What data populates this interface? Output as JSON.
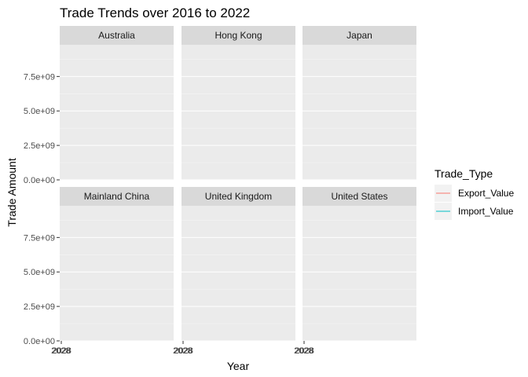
{
  "chart_data": {
    "type": "line",
    "title": "Trade Trends over 2016 to 2022",
    "xlabel": "Year",
    "ylabel": "Trade Amount",
    "facets": [
      "Australia",
      "Hong Kong",
      "Japan",
      "Mainland China",
      "United Kingdom",
      "United States"
    ],
    "y_ticks": [
      "0.0e+00",
      "2.5e+09",
      "5.0e+09",
      "7.5e+09"
    ],
    "y_tick_values": [
      0,
      2500000000,
      5000000000,
      7500000000
    ],
    "ylim": [
      0,
      9800000000
    ],
    "x_tick_label": "2028",
    "grid": true,
    "legend": {
      "title": "Trade_Type",
      "position": "right",
      "entries": [
        {
          "label": "Export_Value",
          "color": "#F8766D"
        },
        {
          "label": "Import_Value",
          "color": "#00BFC4"
        }
      ]
    },
    "series": [
      {
        "name": "Export_Value",
        "color": "#F8766D",
        "values": []
      },
      {
        "name": "Import_Value",
        "color": "#00BFC4",
        "values": []
      }
    ]
  }
}
